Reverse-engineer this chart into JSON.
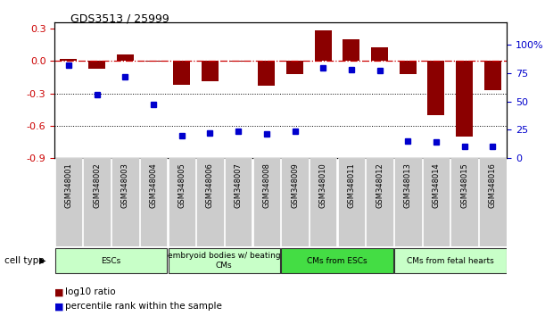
{
  "title": "GDS3513 / 25999",
  "samples": [
    "GSM348001",
    "GSM348002",
    "GSM348003",
    "GSM348004",
    "GSM348005",
    "GSM348006",
    "GSM348007",
    "GSM348008",
    "GSM348009",
    "GSM348010",
    "GSM348011",
    "GSM348012",
    "GSM348013",
    "GSM348014",
    "GSM348015",
    "GSM348016"
  ],
  "log10_ratio": [
    0.02,
    -0.07,
    0.06,
    -0.01,
    -0.22,
    -0.19,
    -0.01,
    -0.23,
    -0.12,
    0.28,
    0.2,
    0.13,
    -0.12,
    -0.5,
    -0.7,
    -0.27
  ],
  "percentile_rank": [
    82,
    56,
    72,
    47,
    20,
    22,
    24,
    21,
    24,
    80,
    78,
    77,
    15,
    14,
    10,
    10
  ],
  "bar_color": "#8B0000",
  "dot_color": "#0000CD",
  "ylim_left": [
    -0.9,
    0.36
  ],
  "ylim_right": [
    0,
    120
  ],
  "yticks_left": [
    -0.9,
    -0.6,
    -0.3,
    0.0,
    0.3
  ],
  "yticks_right": [
    0,
    25,
    50,
    75,
    100
  ],
  "dotted_lines": [
    -0.3,
    -0.6
  ],
  "cell_type_groups": [
    {
      "label": "ESCs",
      "start": 0,
      "end": 3,
      "color": "#C8FFC8"
    },
    {
      "label": "embryoid bodies w/ beating\nCMs",
      "start": 4,
      "end": 7,
      "color": "#C8FFC8"
    },
    {
      "label": "CMs from ESCs",
      "start": 8,
      "end": 11,
      "color": "#44DD44"
    },
    {
      "label": "CMs from fetal hearts",
      "start": 12,
      "end": 15,
      "color": "#C8FFC8"
    }
  ],
  "cell_type_label": "cell type",
  "legend1_label": "log10 ratio",
  "legend2_label": "percentile rank within the sample",
  "background_color": "#ffffff"
}
